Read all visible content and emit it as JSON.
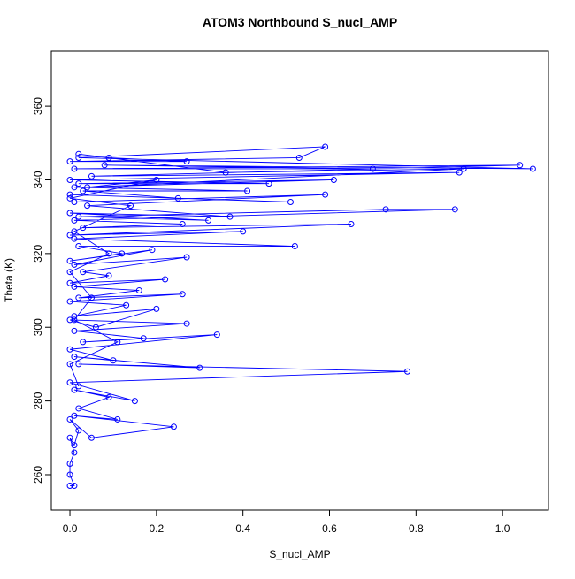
{
  "chart_data": {
    "type": "line",
    "title": "ATOM3 Northbound S_nucl_AMP",
    "xlabel": "S_nucl_AMP",
    "ylabel": "Theta (K)",
    "color": "#0000ff",
    "x": [
      0.0,
      0.01,
      0.0,
      0.0,
      0.01,
      0.0,
      0.01,
      0.02,
      0.0,
      0.05,
      0.24,
      0.01,
      0.11,
      0.02,
      0.09,
      0.01,
      0.15,
      0.0,
      0.78,
      0.02,
      0.3,
      0.01,
      0.1,
      0.0,
      0.34,
      0.03,
      0.17,
      0.01,
      0.27,
      0.0,
      0.06,
      0.2,
      0.01,
      0.13,
      0.0,
      0.26,
      0.02,
      0.16,
      0.01,
      0.22,
      0.0,
      0.09,
      0.03,
      0.27,
      0.01,
      0.19,
      0.0,
      0.12,
      0.02,
      0.52,
      0.01,
      0.4,
      0.0,
      0.65,
      0.03,
      0.26,
      0.01,
      0.89,
      0.73,
      0.02,
      0.32,
      0.0,
      0.37,
      0.04,
      0.59,
      0.01,
      0.51,
      0.0,
      0.25,
      0.03,
      0.41,
      0.01,
      0.61,
      0.02,
      0.46,
      0.0,
      0.9,
      0.05,
      1.04,
      0.01,
      0.7,
      0.08,
      1.07,
      0.02,
      0.59,
      0.53,
      0.0,
      0.27,
      0.09,
      0.02,
      0.36,
      0.91,
      0.04,
      0.2,
      0.0,
      0.14,
      0.01,
      0.09,
      0.0,
      0.05,
      0.01,
      0.11,
      0.0,
      0.02
    ],
    "values": [
      257,
      257,
      260,
      263,
      266,
      270,
      268,
      272,
      275,
      270,
      273,
      276,
      275,
      278,
      281,
      283,
      280,
      285,
      288,
      290,
      289,
      292,
      291,
      294,
      298,
      296,
      297,
      299,
      301,
      302,
      300,
      305,
      303,
      306,
      307,
      309,
      308,
      310,
      311,
      313,
      312,
      314,
      315,
      319,
      317,
      321,
      318,
      320,
      322,
      322,
      324,
      326,
      325,
      328,
      327,
      328,
      329,
      332,
      332,
      330,
      329,
      331,
      330,
      333,
      336,
      334,
      334,
      336,
      335,
      337,
      337,
      338,
      340,
      339,
      339,
      340,
      342,
      341,
      344,
      343,
      343,
      344,
      343,
      346,
      349,
      346,
      345,
      345,
      346,
      347,
      342,
      343,
      338,
      340,
      335,
      333,
      326,
      320,
      315,
      308,
      302,
      296,
      290,
      284
    ],
    "xlim": [
      -0.043,
      1.106
    ],
    "ylim": [
      250.4,
      374.9
    ],
    "xticks": [
      {
        "value": 0,
        "label": "0.0"
      },
      {
        "value": 0.2,
        "label": "0.2"
      },
      {
        "value": 0.4,
        "label": "0.4"
      },
      {
        "value": 0.6,
        "label": "0.6"
      },
      {
        "value": 0.8,
        "label": "0.8"
      },
      {
        "value": 1,
        "label": "1.0"
      }
    ],
    "yticks": [
      260,
      280,
      300,
      320,
      340,
      360
    ]
  }
}
